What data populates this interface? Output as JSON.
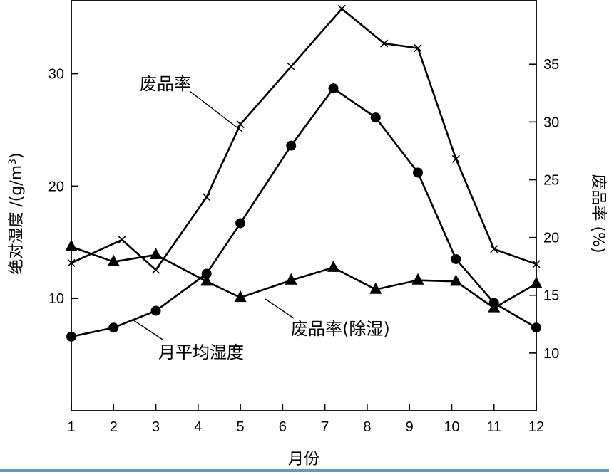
{
  "chart_data": {
    "type": "line",
    "x": [
      1,
      2,
      3,
      4,
      5,
      6,
      7,
      8,
      9,
      10,
      11,
      12
    ],
    "xlabel": "月份",
    "xticks": [
      "1",
      "2",
      "3",
      "4",
      "5",
      "6",
      "7",
      "8",
      "9",
      "10",
      "11",
      "12"
    ],
    "ylabel_left": "绝对湿度 /(g/m",
    "ylabel_left_sup": "3",
    "ylabel_left_tail": ")",
    "yticks_left": [
      "10",
      "20",
      "30"
    ],
    "ylim_left": [
      0,
      36.5
    ],
    "ylabel_right": "废品率 (%)",
    "yticks_right": [
      "10",
      "15",
      "20",
      "25",
      "30",
      "35"
    ],
    "ylim_right": [
      5,
      40.5
    ],
    "grid": false,
    "series": [
      {
        "name": "废品率",
        "axis": "right",
        "marker": "x",
        "x": [
          1,
          2.2,
          3,
          4.2,
          5,
          6.2,
          7.4,
          8.4,
          9.2,
          10.1,
          11,
          12
        ],
        "values": [
          17.8,
          19.8,
          17.2,
          23.5,
          29.8,
          34.8,
          39.8,
          36.8,
          36.4,
          26.8,
          19.0,
          17.7
        ]
      },
      {
        "name": "月平均湿度",
        "axis": "left",
        "marker": "circle",
        "x": [
          1,
          2,
          3,
          4.2,
          5,
          6.2,
          7.2,
          8.2,
          9.2,
          10.1,
          11,
          12
        ],
        "values": [
          6.6,
          7.4,
          8.9,
          12.2,
          16.7,
          23.6,
          28.7,
          26.1,
          21.2,
          13.5,
          9.6,
          7.4
        ]
      },
      {
        "name": "废品率(除湿)",
        "axis": "right",
        "marker": "triangle",
        "x": [
          1,
          2,
          3,
          4.2,
          5,
          6.2,
          7.2,
          8.2,
          9.2,
          10.1,
          11,
          12
        ],
        "values": [
          19.2,
          17.9,
          18.5,
          16.2,
          14.8,
          16.3,
          17.4,
          15.5,
          16.3,
          16.2,
          13.9,
          16.0
        ]
      }
    ],
    "annotations": [
      {
        "text": "废品率"
      },
      {
        "text": "废品率(除湿)"
      },
      {
        "text": "月平均湿度"
      }
    ]
  }
}
